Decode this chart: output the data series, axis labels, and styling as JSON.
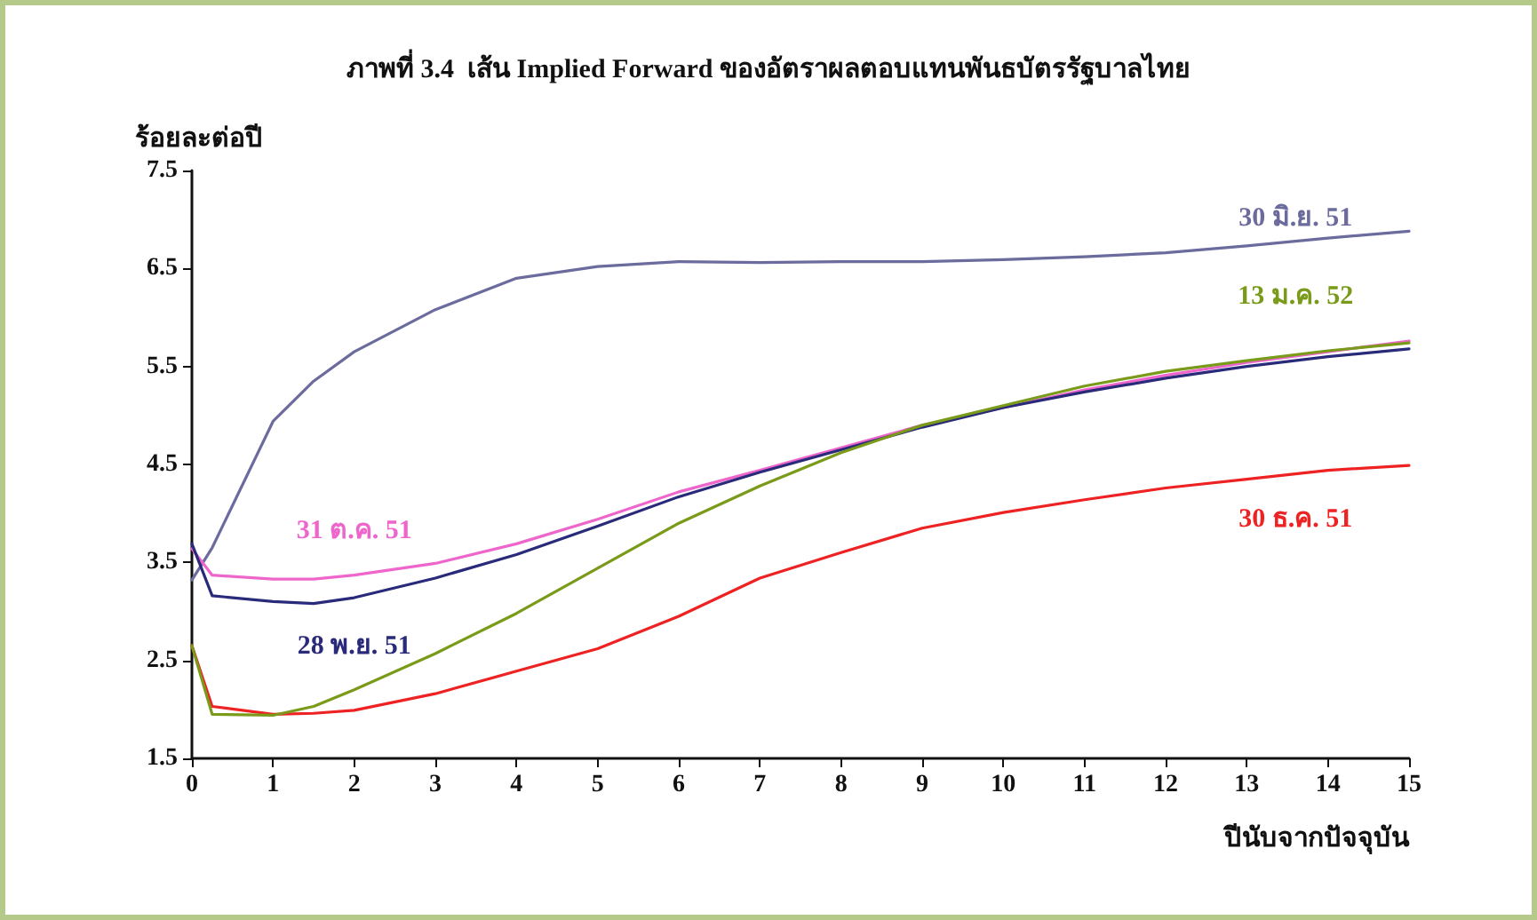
{
  "chart_data": {
    "type": "line",
    "title": "ภาพที่ 3.4  เส้น Implied Forward ของอัตราผลตอบแทนพันธบัตรรัฐบาลไทย",
    "ylabel": "ร้อยละต่อปี",
    "xlabel": "ปีนับจากปัจจุบัน",
    "x": [
      0,
      0.25,
      1,
      1.5,
      2,
      3,
      4,
      5,
      6,
      7,
      8,
      9,
      10,
      11,
      12,
      13,
      14,
      15
    ],
    "series": [
      {
        "name": "30 มิ.ย. 51",
        "color": "#6b6b9e",
        "values": [
          3.32,
          3.65,
          4.94,
          5.35,
          5.65,
          6.08,
          6.4,
          6.52,
          6.57,
          6.56,
          6.57,
          6.57,
          6.59,
          6.62,
          6.66,
          6.73,
          6.81,
          6.88
        ]
      },
      {
        "name": "31 ต.ค. 51",
        "color": "#ee66cc",
        "values": [
          3.64,
          3.37,
          3.33,
          3.33,
          3.37,
          3.49,
          3.69,
          3.94,
          4.22,
          4.44,
          4.67,
          4.9,
          5.08,
          5.26,
          5.41,
          5.54,
          5.65,
          5.76
        ]
      },
      {
        "name": "28 พ.ย. 51",
        "color": "#2a2a7a",
        "values": [
          3.69,
          3.16,
          3.1,
          3.08,
          3.14,
          3.34,
          3.58,
          3.87,
          4.17,
          4.42,
          4.65,
          4.88,
          5.08,
          5.24,
          5.38,
          5.5,
          5.6,
          5.68
        ]
      },
      {
        "name": "30 ธ.ค. 51",
        "color": "#ee2222",
        "values": [
          2.65,
          2.03,
          1.95,
          1.96,
          1.99,
          2.16,
          2.39,
          2.62,
          2.95,
          3.34,
          3.6,
          3.85,
          4.01,
          4.14,
          4.26,
          4.35,
          4.44,
          4.49
        ]
      },
      {
        "name": "13 ม.ค. 52",
        "color": "#7a9a1a",
        "values": [
          2.65,
          1.95,
          1.94,
          2.03,
          2.2,
          2.57,
          2.98,
          3.44,
          3.9,
          4.28,
          4.62,
          4.9,
          5.1,
          5.3,
          5.45,
          5.56,
          5.66,
          5.74
        ]
      }
    ],
    "xlim": [
      0,
      15
    ],
    "xticks": [
      0,
      1,
      2,
      3,
      4,
      5,
      6,
      7,
      8,
      9,
      10,
      11,
      12,
      13,
      14,
      15
    ],
    "ylim": [
      1.5,
      7.5
    ],
    "yticks": [
      1.5,
      2.5,
      3.5,
      4.5,
      5.5,
      6.5,
      7.5
    ],
    "grid": false,
    "legend": false,
    "marker": "none",
    "line_style": "solid"
  }
}
